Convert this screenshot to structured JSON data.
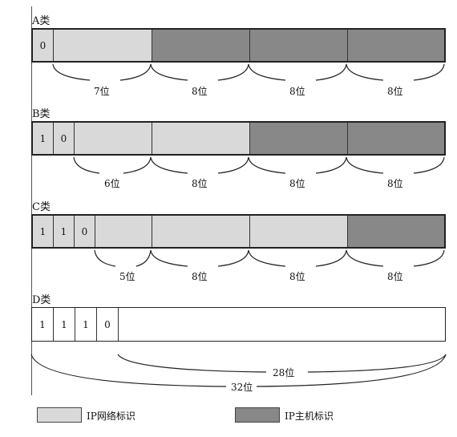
{
  "classes": [
    {
      "label": "A类",
      "bits": [
        "0"
      ],
      "brace_labels": [
        "7位",
        "8位",
        "8位",
        "8位"
      ]
    },
    {
      "label": "B类",
      "bits": [
        "1",
        "0"
      ],
      "brace_labels": [
        "6位",
        "8位",
        "8位",
        "8位"
      ]
    },
    {
      "label": "C类",
      "bits": [
        "1",
        "1",
        "0"
      ],
      "brace_labels": [
        "5位",
        "8位",
        "8位",
        "8位"
      ]
    },
    {
      "label": "D类",
      "bits": [
        "1",
        "1",
        "1",
        "0"
      ],
      "brace_labels": [
        "28位",
        "32位"
      ]
    }
  ],
  "legend": {
    "network": "IP网络标识",
    "host": "IP主机标识"
  },
  "colors": {
    "network": "#d9d9d9",
    "host": "#888888",
    "border": "#222222"
  }
}
